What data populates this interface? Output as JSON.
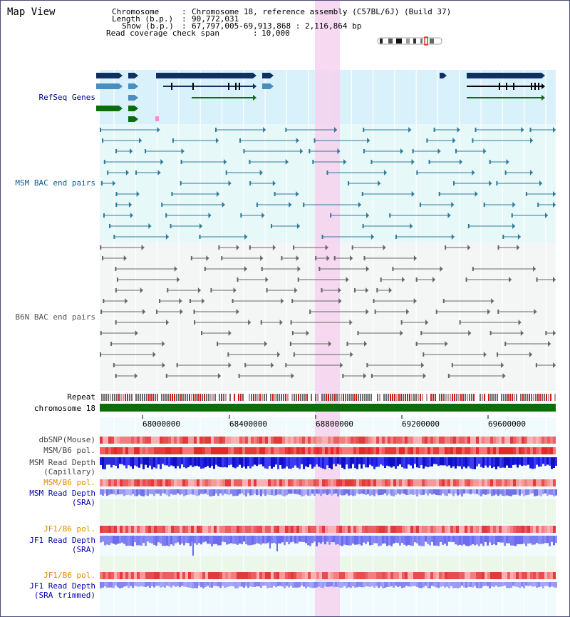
{
  "title": "Map View",
  "header": {
    "chromosome": {
      "label": "Chromosome",
      "value": "Chromosome 18, reference assembly (C57BL/6J) (Build 37)"
    },
    "length": {
      "label": "Length (b.p.)",
      "value": "90,772,031"
    },
    "show": {
      "label": "Show (b.p.)",
      "value": "67,797,005-69,913,868 : 2,116,864 bp"
    },
    "coverage": {
      "label": "Read coverage check span",
      "value": "10,000"
    }
  },
  "tracks": {
    "refseq": "RefSeq Genes",
    "msm_bac": "MSM BAC end pairs",
    "b6n_bac": "B6N BAC end pairs",
    "repeat": "Repeat",
    "chromosome": "chromosome 18",
    "dbsnp": "dbSNP(Mouse)",
    "msm_b6_pol_1": "MSM/B6 pol.",
    "msm_depth_cap": "MSM Read Depth",
    "msm_depth_cap_sub": "(Capillary)",
    "msm_b6_pol_2": "MSM/B6 pol.",
    "msm_depth_sra": "MSM Read Depth",
    "msm_depth_sra_sub": "(SRA)",
    "jf1_b6_pol_1": "JF1/B6 pol.",
    "jf1_depth_sra": "JF1 Read Depth",
    "jf1_depth_sra_sub": "(SRA)",
    "jf1_b6_pol_2": "JF1/B6 pol.",
    "jf1_depth_trim": "JF1 Read Depth",
    "jf1_depth_trim_sub": "(SRA trimmed)"
  },
  "axis": {
    "ticks": [
      "68000000",
      "68400000",
      "68800000",
      "69200000",
      "69600000"
    ]
  },
  "colors": {
    "refseq_label": "#00008b",
    "msm_label": "#0e5a8a",
    "b6n_label": "#555555",
    "pol_label": "#e38a00",
    "depth_label": "#0000b0",
    "highlight": "#f6d2ef",
    "chromosome_bar": "#0b6e0b",
    "refseq_bg": "#d9f1fb",
    "msm_bg": "#e6f8f8",
    "b6n_bg": "#f4f6f6",
    "sra_bg": "#eaf7e9"
  }
}
